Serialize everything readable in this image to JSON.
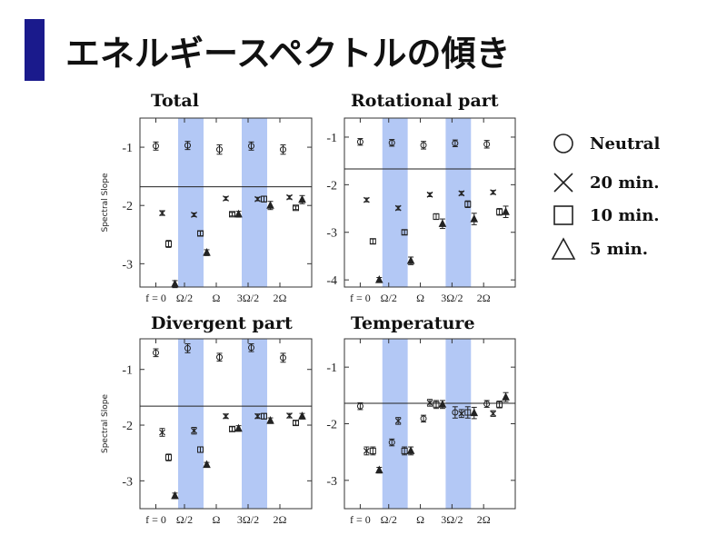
{
  "slide": {
    "title": "エネルギースペクトルの傾き"
  },
  "legend": [
    {
      "label": "Neutral",
      "marker": "circle"
    },
    {
      "label": "20 min.",
      "marker": "cross"
    },
    {
      "label": "10 min.",
      "marker": "square"
    },
    {
      "label": "5 min.",
      "marker": "triangle"
    }
  ],
  "colors": {
    "band": "#b3c8f5",
    "accent": "#1a1a8c",
    "marker": "#222222"
  },
  "chart_data": [
    {
      "type": "scatter",
      "title": "Total",
      "ylabel": "Spectral Slope",
      "ylim": [
        -3.4,
        -0.5
      ],
      "yticks": [
        {
          "v": -1,
          "label": "-1"
        },
        {
          "v": -2,
          "label": "-2"
        },
        {
          "v": -3,
          "label": "-3"
        }
      ],
      "xlim": [
        0,
        2.4
      ],
      "xticks": [
        {
          "v": 0.1,
          "label": "f = 0"
        },
        {
          "v": 0.55,
          "label": "Ω/2"
        },
        {
          "v": 1.05,
          "label": "Ω"
        },
        {
          "v": 1.55,
          "label": "3Ω/2"
        },
        {
          "v": 2.05,
          "label": "2Ω"
        }
      ],
      "bands": [
        [
          0.45,
          0.85
        ],
        [
          1.45,
          1.85
        ]
      ],
      "hline": -1.68,
      "series": [
        {
          "marker": "circle",
          "points": [
            [
              0.1,
              -0.98,
              0.07
            ],
            [
              0.6,
              -0.97,
              0.07
            ],
            [
              1.1,
              -1.04,
              0.08
            ],
            [
              1.6,
              -0.98,
              0.07
            ],
            [
              2.1,
              -1.04,
              0.08
            ]
          ]
        },
        {
          "marker": "cross",
          "points": [
            [
              0.2,
              -2.13,
              0.04
            ],
            [
              0.7,
              -2.16,
              0.03
            ],
            [
              1.2,
              -1.88,
              0.03
            ],
            [
              1.7,
              -1.89,
              0.03
            ],
            [
              2.2,
              -1.86,
              0.03
            ]
          ]
        },
        {
          "marker": "square",
          "points": [
            [
              0.3,
              -2.66,
              0.06
            ],
            [
              0.8,
              -2.48,
              0.04
            ],
            [
              1.3,
              -2.15,
              0.03
            ],
            [
              1.8,
              -1.89,
              0.05
            ],
            [
              2.3,
              -2.04,
              0.03
            ]
          ]
        },
        {
          "marker": "triangle",
          "points": [
            [
              0.4,
              -3.35,
              0.06
            ],
            [
              0.9,
              -2.81,
              0.05
            ],
            [
              1.4,
              -2.15,
              0.05
            ],
            [
              1.9,
              -2.0,
              0.07
            ],
            [
              2.4,
              -1.9,
              0.07
            ]
          ]
        }
      ]
    },
    {
      "type": "scatter",
      "title": "Rotational part",
      "ylabel": "",
      "ylim": [
        -4.15,
        -0.6
      ],
      "yticks": [
        {
          "v": -1,
          "label": "-1"
        },
        {
          "v": -2,
          "label": "-2"
        },
        {
          "v": -3,
          "label": "-3"
        },
        {
          "v": -4,
          "label": "-4"
        }
      ],
      "xlim": [
        0,
        2.4
      ],
      "xticks": [
        {
          "v": 0.1,
          "label": "f = 0"
        },
        {
          "v": 0.55,
          "label": "Ω/2"
        },
        {
          "v": 1.05,
          "label": "Ω"
        },
        {
          "v": 1.55,
          "label": "3Ω/2"
        },
        {
          "v": 2.05,
          "label": "2Ω"
        }
      ],
      "bands": [
        [
          0.45,
          0.85
        ],
        [
          1.45,
          1.85
        ]
      ],
      "hline": -1.67,
      "series": [
        {
          "marker": "circle",
          "points": [
            [
              0.1,
              -1.1,
              0.07
            ],
            [
              0.6,
              -1.12,
              0.07
            ],
            [
              1.1,
              -1.17,
              0.08
            ],
            [
              1.6,
              -1.13,
              0.07
            ],
            [
              2.1,
              -1.15,
              0.08
            ]
          ]
        },
        {
          "marker": "cross",
          "points": [
            [
              0.2,
              -2.32,
              0.04
            ],
            [
              0.7,
              -2.49,
              0.04
            ],
            [
              1.2,
              -2.21,
              0.04
            ],
            [
              1.7,
              -2.18,
              0.04
            ],
            [
              2.2,
              -2.16,
              0.04
            ]
          ]
        },
        {
          "marker": "square",
          "points": [
            [
              0.3,
              -3.19,
              0.05
            ],
            [
              0.8,
              -3.0,
              0.05
            ],
            [
              1.3,
              -2.67,
              0.06
            ],
            [
              1.8,
              -2.41,
              0.07
            ],
            [
              2.3,
              -2.57,
              0.07
            ]
          ]
        },
        {
          "marker": "triangle",
          "points": [
            [
              0.4,
              -4.0,
              0.05
            ],
            [
              0.9,
              -3.6,
              0.08
            ],
            [
              1.4,
              -2.82,
              0.1
            ],
            [
              1.9,
              -2.72,
              0.12
            ],
            [
              2.4,
              -2.57,
              0.12
            ]
          ]
        }
      ]
    },
    {
      "type": "scatter",
      "title": "Divergent part",
      "ylabel": "Spectral Slope",
      "ylim": [
        -3.5,
        -0.45
      ],
      "yticks": [
        {
          "v": -1,
          "label": "-1"
        },
        {
          "v": -2,
          "label": "-2"
        },
        {
          "v": -3,
          "label": "-3"
        }
      ],
      "xlim": [
        0,
        2.4
      ],
      "xticks": [
        {
          "v": 0.1,
          "label": "f = 0"
        },
        {
          "v": 0.55,
          "label": "Ω/2"
        },
        {
          "v": 1.05,
          "label": "Ω"
        },
        {
          "v": 1.55,
          "label": "3Ω/2"
        },
        {
          "v": 2.05,
          "label": "2Ω"
        }
      ],
      "bands": [
        [
          0.45,
          0.85
        ],
        [
          1.45,
          1.85
        ]
      ],
      "hline": -1.66,
      "series": [
        {
          "marker": "circle",
          "points": [
            [
              0.1,
              -0.7,
              0.07
            ],
            [
              0.6,
              -0.62,
              0.08
            ],
            [
              1.1,
              -0.78,
              0.07
            ],
            [
              1.6,
              -0.61,
              0.07
            ],
            [
              2.1,
              -0.79,
              0.08
            ]
          ]
        },
        {
          "marker": "cross",
          "points": [
            [
              0.2,
              -2.13,
              0.07
            ],
            [
              0.7,
              -2.1,
              0.06
            ],
            [
              1.2,
              -1.84,
              0.04
            ],
            [
              1.7,
              -1.84,
              0.04
            ],
            [
              2.2,
              -1.83,
              0.04
            ]
          ]
        },
        {
          "marker": "square",
          "points": [
            [
              0.3,
              -2.58,
              0.06
            ],
            [
              0.8,
              -2.44,
              0.05
            ],
            [
              1.3,
              -2.07,
              0.04
            ],
            [
              1.8,
              -1.84,
              0.05
            ],
            [
              2.3,
              -1.96,
              0.04
            ]
          ]
        },
        {
          "marker": "triangle",
          "points": [
            [
              0.4,
              -3.27,
              0.05
            ],
            [
              0.9,
              -2.71,
              0.04
            ],
            [
              1.4,
              -2.06,
              0.05
            ],
            [
              1.9,
              -1.92,
              0.05
            ],
            [
              2.4,
              -1.84,
              0.05
            ]
          ]
        }
      ]
    },
    {
      "type": "scatter",
      "title": "Temperature",
      "ylabel": "",
      "ylim": [
        -3.5,
        -0.5
      ],
      "yticks": [
        {
          "v": -1,
          "label": "-1"
        },
        {
          "v": -2,
          "label": "-2"
        },
        {
          "v": -3,
          "label": "-3"
        }
      ],
      "xlim": [
        0,
        2.4
      ],
      "xticks": [
        {
          "v": 0.1,
          "label": "f = 0"
        },
        {
          "v": 0.55,
          "label": "Ω/2"
        },
        {
          "v": 1.05,
          "label": "Ω"
        },
        {
          "v": 1.55,
          "label": "3Ω/2"
        },
        {
          "v": 2.05,
          "label": "2Ω"
        }
      ],
      "bands": [
        [
          0.45,
          0.85
        ],
        [
          1.45,
          1.85
        ]
      ],
      "hline": -1.64,
      "series": [
        {
          "marker": "circle",
          "points": [
            [
              0.1,
              -1.69,
              0.06
            ],
            [
              0.6,
              -2.33,
              0.06
            ],
            [
              1.1,
              -1.91,
              0.06
            ],
            [
              1.6,
              -1.8,
              0.1
            ],
            [
              2.1,
              -1.65,
              0.06
            ]
          ]
        },
        {
          "marker": "cross",
          "points": [
            [
              0.2,
              -2.48,
              0.07
            ],
            [
              0.7,
              -1.95,
              0.06
            ],
            [
              1.2,
              -1.63,
              0.06
            ],
            [
              1.7,
              -1.82,
              0.07
            ],
            [
              2.2,
              -1.82,
              0.05
            ]
          ]
        },
        {
          "marker": "square",
          "points": [
            [
              0.3,
              -2.48,
              0.07
            ],
            [
              0.8,
              -2.48,
              0.07
            ],
            [
              1.3,
              -1.66,
              0.07
            ],
            [
              1.8,
              -1.8,
              0.1
            ],
            [
              2.3,
              -1.66,
              0.06
            ]
          ]
        },
        {
          "marker": "triangle",
          "points": [
            [
              0.4,
              -2.82,
              0.05
            ],
            [
              0.9,
              -2.48,
              0.07
            ],
            [
              1.4,
              -1.66,
              0.07
            ],
            [
              1.9,
              -1.81,
              0.1
            ],
            [
              2.4,
              -1.53,
              0.08
            ]
          ]
        }
      ]
    }
  ]
}
